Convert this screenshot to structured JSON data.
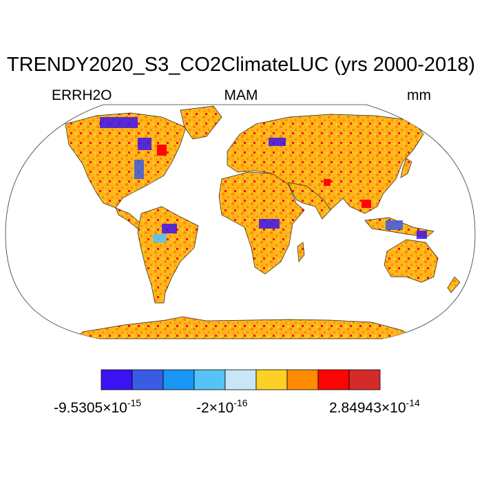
{
  "title": "TRENDY2020_S3_CO2ClimateLUC (yrs 2000-2018)",
  "subtitles": {
    "left": "ERRH2O",
    "center": "MAM",
    "right": "mm"
  },
  "colorbar": {
    "colors": [
      "#3b12f2",
      "#3a5be3",
      "#1a96f5",
      "#55c3f5",
      "#c9e6f7",
      "#fdd026",
      "#fe8b02",
      "#fd0505",
      "#d42a2a"
    ],
    "labels": [
      {
        "mantissa": "-9.5305",
        "exp": "-15"
      },
      {
        "mantissa": "-2",
        "exp": "-16"
      },
      {
        "mantissa": "2.84943",
        "exp": "-14"
      }
    ],
    "times": "×10"
  }
}
